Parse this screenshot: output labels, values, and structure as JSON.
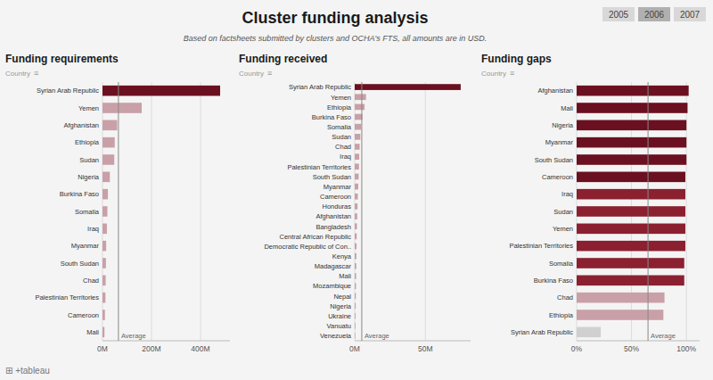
{
  "title": "Cluster funding analysis",
  "subtitle": "Based on factsheets submitted by clusters and OCHA's FTS, all amounts are in USD.",
  "buttons": [
    {
      "label": "2005",
      "color": "#d8d8d8"
    },
    {
      "label": "2006",
      "color": "#b0b0b0"
    },
    {
      "label": "2007",
      "color": "#d8d8d8"
    }
  ],
  "footer": "⊞ +tableau",
  "chart_data": [
    {
      "type": "bar",
      "orientation": "horizontal",
      "title": "Funding requirements",
      "categories": [
        "Syrian Arab Republic",
        "Yemen",
        "Afghanistan",
        "Ethiopia",
        "Sudan",
        "Nigeria",
        "Burkina Faso",
        "Somalia",
        "Iraq",
        "Myanmar",
        "South Sudan",
        "Chad",
        "Palestinian Territories",
        "Cameroon",
        "Mali"
      ],
      "values": [
        480000000,
        160000000,
        60000000,
        50000000,
        48000000,
        30000000,
        22000000,
        20000000,
        18000000,
        15000000,
        14000000,
        13000000,
        12000000,
        10000000,
        8000000
      ],
      "colors": [
        "#6b1020",
        "#c9a0a8",
        "#c9a0a8",
        "#c9a0a8",
        "#c9a0a8",
        "#c9a0a8",
        "#c9a0a8",
        "#c9a0a8",
        "#c9a0a8",
        "#c9a0a8",
        "#c9a0a8",
        "#c9a0a8",
        "#c9a0a8",
        "#c9a0a8",
        "#c9a0a8"
      ],
      "xlim": [
        0,
        520000000
      ],
      "xticks": [
        {
          "value": 0,
          "label": "0M"
        },
        {
          "value": 200000000,
          "label": "200M"
        },
        {
          "value": 400000000,
          "label": "400M"
        }
      ],
      "grid": true,
      "average": 65000000,
      "average_label": "Average",
      "filter_label": "Country",
      "filter_icon": "≡"
    },
    {
      "type": "bar",
      "orientation": "horizontal",
      "title": "Funding received",
      "categories": [
        "Syrian Arab Republic",
        "Yemen",
        "Ethiopia",
        "Burkina Faso",
        "Somalia",
        "Sudan",
        "Chad",
        "Iraq",
        "Palestinian Territories",
        "South Sudan",
        "Myanmar",
        "Cameroon",
        "Honduras",
        "Afghanistan",
        "Bangladesh",
        "Central African Republic",
        "Democratic Republic of Con..",
        "Kenya",
        "Madagascar",
        "Mali",
        "Mozambique",
        "Nepal",
        "Nigeria",
        "Ukraine",
        "Vanuatu",
        "Venezuela"
      ],
      "values": [
        75000000,
        8000000,
        7000000,
        5500000,
        4500000,
        4000000,
        3500000,
        3200000,
        3000000,
        2800000,
        2500000,
        2200000,
        2000000,
        1800000,
        1600000,
        1400000,
        1300000,
        1200000,
        1100000,
        1000000,
        900000,
        800000,
        700000,
        600000,
        500000,
        400000
      ],
      "colors": [
        "#6b1020",
        "#c9a0a8",
        "#c9a0a8",
        "#c9a0a8",
        "#c9a0a8",
        "#c9a0a8",
        "#c9a0a8",
        "#c9a0a8",
        "#c9a0a8",
        "#c9a0a8",
        "#c9a0a8",
        "#c9a0a8",
        "#c9a0a8",
        "#c9a0a8",
        "#c9a0a8",
        "#c9a0a8",
        "#c9a0a8",
        "#c9a0a8",
        "#c9a0a8",
        "#c9a0a8",
        "#c9a0a8",
        "#c9a0a8",
        "#c9a0a8",
        "#c9a0a8",
        "#c9a0a8",
        "#c9a0a8"
      ],
      "xlim": [
        0,
        82000000
      ],
      "xticks": [
        {
          "value": 0,
          "label": "0M"
        },
        {
          "value": 50000000,
          "label": "50M"
        }
      ],
      "grid": true,
      "average": 5000000,
      "average_label": "Average",
      "filter_label": "Country",
      "filter_icon": "≡"
    },
    {
      "type": "bar",
      "orientation": "horizontal",
      "title": "Funding gaps",
      "categories": [
        "Afghanistan",
        "Mali",
        "Nigeria",
        "Myanmar",
        "South Sudan",
        "Cameroon",
        "Iraq",
        "Sudan",
        "Yemen",
        "Palestinian Territories",
        "Somalia",
        "Burkina Faso",
        "Chad",
        "Ethiopia",
        "Syrian Arab Republic"
      ],
      "values": [
        1.02,
        1.01,
        1.0,
        1.0,
        1.0,
        0.99,
        0.99,
        0.99,
        0.99,
        0.99,
        0.98,
        0.98,
        0.8,
        0.79,
        0.22
      ],
      "colors": [
        "#6b1020",
        "#6b1020",
        "#6b1020",
        "#6b1020",
        "#6b1020",
        "#6b1020",
        "#8b2030",
        "#8b2030",
        "#8b2030",
        "#8b2030",
        "#8b2030",
        "#8b2030",
        "#c9a0a8",
        "#c9a0a8",
        "#d0d0d0"
      ],
      "xlim": [
        0,
        1.12
      ],
      "xticks": [
        {
          "value": 0,
          "label": "0%"
        },
        {
          "value": 0.5,
          "label": "50%"
        },
        {
          "value": 1.0,
          "label": "100%"
        }
      ],
      "grid": true,
      "average": 0.65,
      "average_label": "Average",
      "filter_label": "Country",
      "filter_icon": "≡"
    }
  ]
}
